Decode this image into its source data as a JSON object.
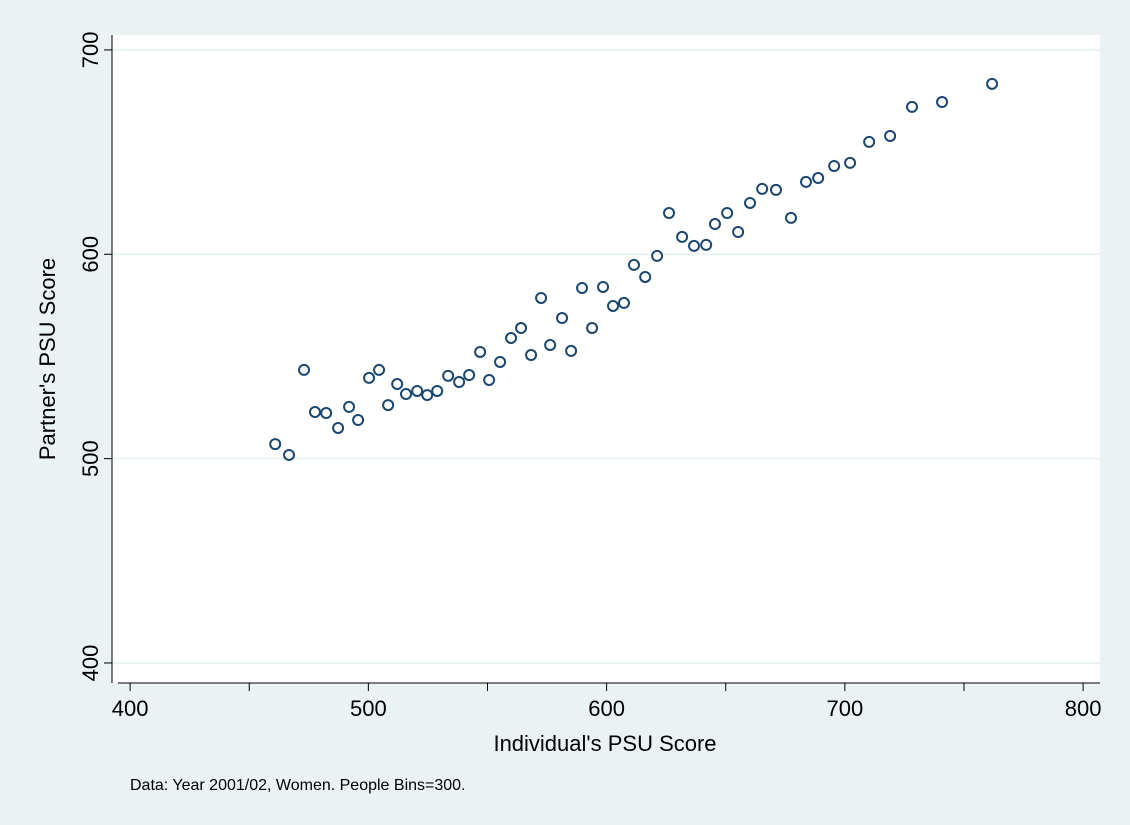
{
  "chart_data": {
    "type": "scatter",
    "x_label": "Individual's PSU Score",
    "y_label": "Partner's PSU Score",
    "note": "Data: Year 2001/02, Women. People Bins=300.",
    "x": [
      460.9,
      466.7,
      473.0,
      477.6,
      482.3,
      487.3,
      491.9,
      495.7,
      500.3,
      504.5,
      508.3,
      512.1,
      515.8,
      520.5,
      524.7,
      528.9,
      533.5,
      538.1,
      542.3,
      546.9,
      550.7,
      555.3,
      559.9,
      564.1,
      568.3,
      572.5,
      576.3,
      581.3,
      585.1,
      589.7,
      593.9,
      598.5,
      602.7,
      607.3,
      611.5,
      616.2,
      621.2,
      626.2,
      631.7,
      636.7,
      641.8,
      645.5,
      650.6,
      655.2,
      660.2,
      665.3,
      671.1,
      677.4,
      683.7,
      688.8,
      695.5,
      702.2,
      710.2,
      719.0,
      728.2,
      740.8,
      761.8
    ],
    "values": [
      507.1,
      501.8,
      543.4,
      522.8,
      522.3,
      515.0,
      525.3,
      518.9,
      539.5,
      543.4,
      526.2,
      536.5,
      531.6,
      533.1,
      531.1,
      533.1,
      540.5,
      537.5,
      540.9,
      552.2,
      538.5,
      547.3,
      559.0,
      563.9,
      550.7,
      578.6,
      555.6,
      568.8,
      552.7,
      583.5,
      563.9,
      584.0,
      574.7,
      576.2,
      594.8,
      588.9,
      599.2,
      620.2,
      608.5,
      604.1,
      604.6,
      614.8,
      620.2,
      610.9,
      625.1,
      632.0,
      631.5,
      617.8,
      635.4,
      637.3,
      643.2,
      644.7,
      655.0,
      657.9,
      672.1,
      674.5,
      683.4
    ],
    "color": "#1a476f",
    "xlim": [
      392.4,
      807.1
    ],
    "xticks": [
      400,
      500,
      600,
      700,
      800
    ],
    "xminor_ticks": [
      450,
      550,
      650,
      750
    ],
    "ylim": [
      390.2,
      707.3
    ],
    "yticks": [
      400,
      500,
      600,
      700
    ],
    "grid": true
  }
}
